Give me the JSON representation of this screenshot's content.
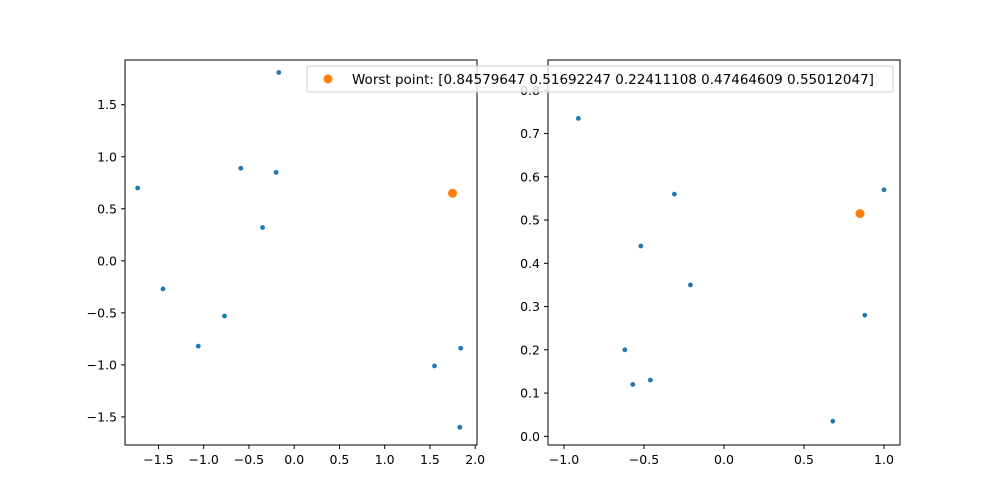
{
  "chart_data": [
    {
      "type": "scatter",
      "xlim": [
        -1.87,
        2.02
      ],
      "ylim": [
        -1.77,
        1.93
      ],
      "xticks": [
        -1.5,
        -1.0,
        -0.5,
        0.0,
        0.5,
        1.0,
        1.5,
        2.0
      ],
      "xtick_labels": [
        "−1.5",
        "−1.0",
        "−0.5",
        "0.0",
        "0.5",
        "1.0",
        "1.5",
        "2.0"
      ],
      "yticks": [
        -1.5,
        -1.0,
        -0.5,
        0.0,
        0.5,
        1.0,
        1.5
      ],
      "ytick_labels": [
        "−1.5",
        "−1.0",
        "−0.5",
        "0.0",
        "0.5",
        "1.0",
        "1.5"
      ],
      "series": [
        {
          "color": "#1f77b4",
          "points": [
            {
              "x": -1.73,
              "y": 0.7
            },
            {
              "x": -1.45,
              "y": -0.27
            },
            {
              "x": -1.06,
              "y": -0.82
            },
            {
              "x": -0.77,
              "y": -0.53
            },
            {
              "x": -0.59,
              "y": 0.89
            },
            {
              "x": -0.35,
              "y": 0.32
            },
            {
              "x": -0.2,
              "y": 0.85
            },
            {
              "x": -0.17,
              "y": 1.81
            },
            {
              "x": 1.55,
              "y": -1.01
            },
            {
              "x": 1.84,
              "y": -0.84
            },
            {
              "x": 1.83,
              "y": -1.6
            }
          ]
        },
        {
          "name": "Worst point: [0.84579647 0.51692247 0.22411108 0.47464609 0.55012047]",
          "color": "#ff7f0e",
          "points": [
            {
              "x": 1.75,
              "y": 0.65
            }
          ]
        }
      ],
      "grid": false,
      "legend_position": "upper right"
    },
    {
      "type": "scatter",
      "xlim": [
        -1.1,
        1.1
      ],
      "ylim": [
        -0.02,
        0.87
      ],
      "xticks": [
        -1.0,
        -0.5,
        0.0,
        0.5,
        1.0
      ],
      "xtick_labels": [
        "−1.0",
        "−0.5",
        "0.0",
        "0.5",
        "1.0"
      ],
      "yticks": [
        0.0,
        0.1,
        0.2,
        0.3,
        0.4,
        0.5,
        0.6,
        0.7,
        0.8
      ],
      "ytick_labels": [
        "0.0",
        "0.1",
        "0.2",
        "0.3",
        "0.4",
        "0.5",
        "0.6",
        "0.7",
        "0.8"
      ],
      "series": [
        {
          "color": "#1f77b4",
          "points": [
            {
              "x": -0.91,
              "y": 0.735
            },
            {
              "x": -0.62,
              "y": 0.2
            },
            {
              "x": -0.57,
              "y": 0.12
            },
            {
              "x": -0.52,
              "y": 0.44
            },
            {
              "x": -0.46,
              "y": 0.13
            },
            {
              "x": -0.31,
              "y": 0.56
            },
            {
              "x": -0.21,
              "y": 0.35
            },
            {
              "x": 0.68,
              "y": 0.035
            },
            {
              "x": 0.88,
              "y": 0.28
            },
            {
              "x": 1.0,
              "y": 0.57
            }
          ]
        },
        {
          "name": "Worst point: [0.84579647 0.51692247 0.22411108 0.47464609 0.55012047]",
          "color": "#ff7f0e",
          "points": [
            {
              "x": 0.85,
              "y": 0.515
            }
          ]
        }
      ],
      "grid": false
    }
  ]
}
